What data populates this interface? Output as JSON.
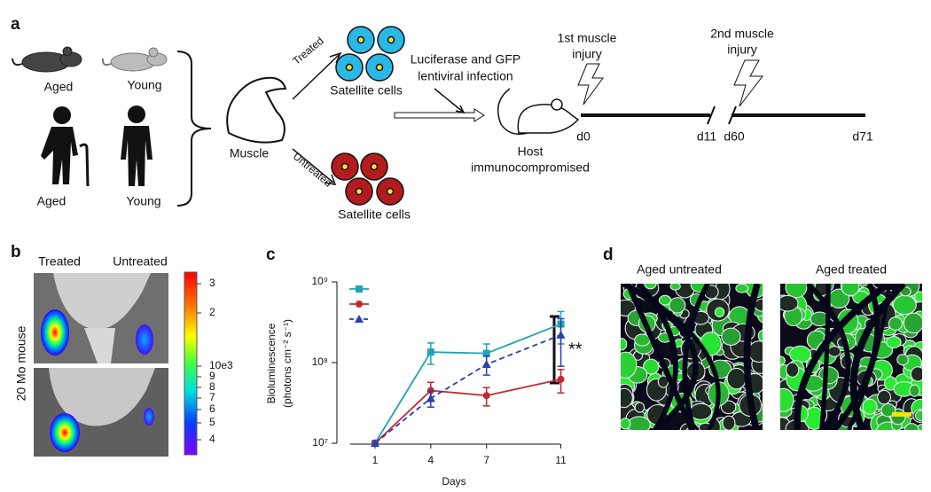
{
  "panel_a": {
    "label": "a",
    "aged_mouse": "Aged",
    "young_mouse": "Young",
    "aged_human": "Aged",
    "young_human": "Young",
    "muscle": "Muscle",
    "treated": "Treated",
    "untreated": "Untreated",
    "satellite_cells_treated": "Satellite cells",
    "satellite_cells_untreated": "Satellite cells",
    "infection": [
      "Luciferase and GFP",
      "lentiviral infection"
    ],
    "host": [
      "Host",
      "immunocompromised"
    ],
    "first_injury": [
      "1st muscle",
      "injury"
    ],
    "second_injury": [
      "2nd muscle",
      "injury"
    ],
    "timeline": [
      "d0",
      "d11",
      "d60",
      "d71"
    ]
  },
  "panel_b": {
    "label": "b",
    "columns": [
      "Treated",
      "Untreated"
    ],
    "row_label": "20 Mo mouse",
    "colorbar_ticks": [
      "3",
      "2",
      "10e3",
      "9",
      "8",
      "7",
      "6",
      "5",
      "4"
    ]
  },
  "chart_data": {
    "type": "line",
    "label": "c",
    "x": [
      1,
      4,
      7,
      11
    ],
    "xlim": [
      0,
      11.5
    ],
    "xticks": [
      1,
      4,
      7,
      11
    ],
    "xlabel": "Days",
    "ylabel": [
      "Bioluminescence",
      "(photons cm⁻² s⁻¹)"
    ],
    "log_scale": true,
    "ylim": [
      10000000,
      1000000000
    ],
    "yticks": [
      {
        "value": 10000000,
        "label": "10⁷"
      },
      {
        "value": 100000000,
        "label": "10⁸"
      },
      {
        "value": 1000000000,
        "label": "10⁹"
      }
    ],
    "series": [
      {
        "color": "#1fa3b8",
        "marker": "square",
        "line_style": "solid",
        "values": [
          10000000,
          135000000,
          130000000,
          300000000
        ],
        "errors": [
          null,
          40000000,
          40000000,
          130000000
        ]
      },
      {
        "color": "#c0292f",
        "marker": "circle",
        "line_style": "solid",
        "values": [
          10000000,
          45000000,
          39000000,
          62000000
        ],
        "errors": [
          null,
          12000000,
          10000000,
          20000000
        ]
      },
      {
        "color": "#2a3fb0",
        "marker": "triangle",
        "line_style": "dashed",
        "values": [
          10000000,
          36000000,
          95000000,
          220000000
        ],
        "errors": [
          null,
          8000000,
          25000000,
          130000000
        ]
      }
    ],
    "annotation": "**"
  },
  "panel_d": {
    "label": "d",
    "titles": [
      "Aged untreated",
      "Aged treated"
    ]
  }
}
